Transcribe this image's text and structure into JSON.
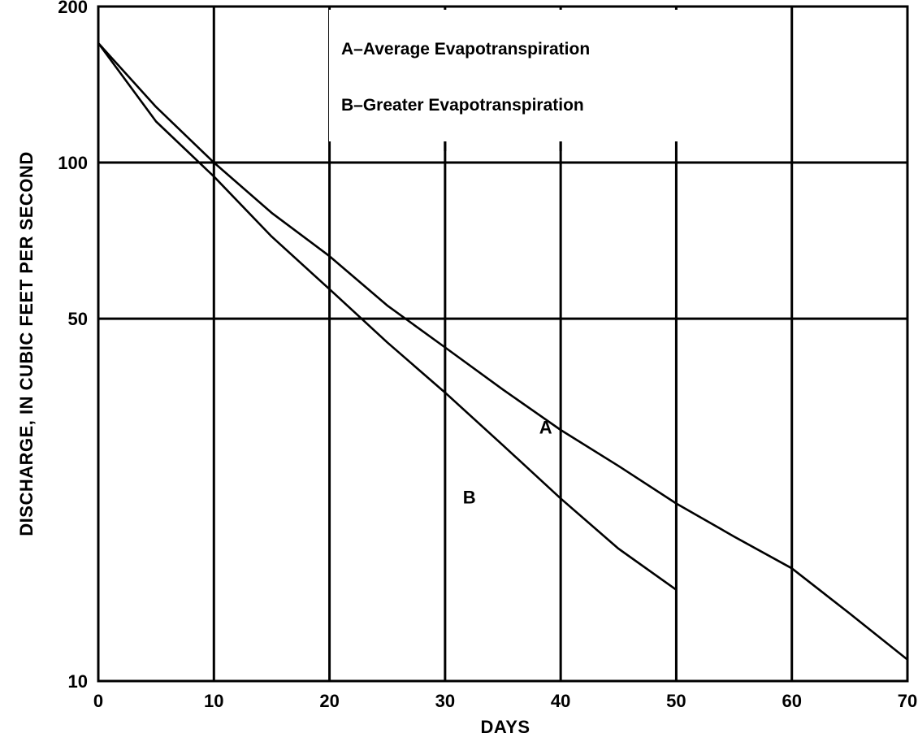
{
  "chart_data": {
    "type": "line",
    "xlabel": "DAYS",
    "ylabel": "DISCHARGE, IN CUBIC FEET PER SECOND",
    "xlim": [
      0,
      70
    ],
    "ylim": [
      10,
      200
    ],
    "yscale": "log",
    "x_ticks": [
      "0",
      "10",
      "20",
      "30",
      "40",
      "50",
      "60",
      "70"
    ],
    "y_ticks": [
      "10",
      "50",
      "100",
      "200"
    ],
    "grid": true,
    "legend": [
      "A–Average Evapotranspiration",
      "B–Greater Evapotranspiration"
    ],
    "legend_position": "top-center",
    "series": [
      {
        "name": "A",
        "x": [
          0,
          5,
          10,
          15,
          20,
          25,
          30,
          35,
          40,
          45,
          50,
          55,
          60,
          65,
          70
        ],
        "y": [
          170,
          128,
          100,
          80,
          66,
          53,
          44,
          36.5,
          30.5,
          26,
          22,
          19,
          16.5,
          13.5,
          11
        ]
      },
      {
        "name": "B",
        "x": [
          0,
          5,
          10,
          15,
          20,
          25,
          30,
          35,
          40,
          45,
          50
        ],
        "y": [
          170,
          120,
          94,
          72,
          57,
          45,
          36,
          28.5,
          22.5,
          18,
          15
        ]
      }
    ]
  }
}
